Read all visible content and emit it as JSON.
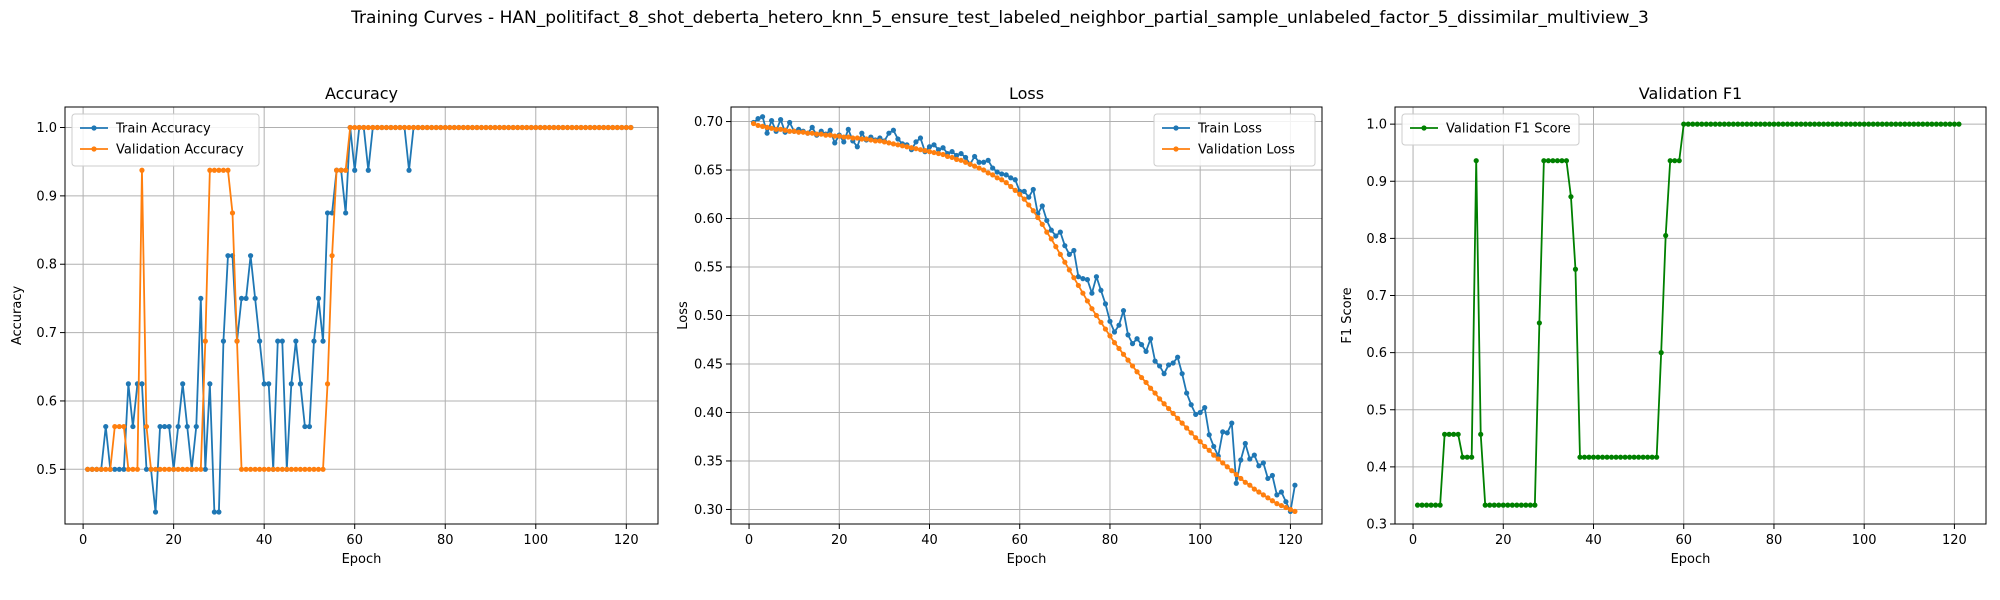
{
  "suptitle": "Training Curves - HAN_politifact_8_shot_deberta_hetero_knn_5_ensure_test_labeled_neighbor_partial_sample_unlabeled_factor_5_dissimilar_multiview_3",
  "colors": {
    "blue": "#1f77b4",
    "orange": "#ff7f0e",
    "green": "#008000",
    "grid": "#b0b0b0"
  },
  "chart_data": [
    {
      "type": "line",
      "title": "Accuracy",
      "xlabel": "Epoch",
      "ylabel": "Accuracy",
      "xlim": [
        -4,
        127
      ],
      "ylim": [
        0.42,
        1.03
      ],
      "xticks": [
        0,
        20,
        40,
        60,
        80,
        100,
        120
      ],
      "yticks": [
        0.5,
        0.6,
        0.7,
        0.8,
        0.9,
        1.0
      ],
      "ytick_labels": [
        "0.5",
        "0.6",
        "0.7",
        "0.8",
        "0.9",
        "1.0"
      ],
      "grid": true,
      "legend": "upper-left",
      "series": [
        {
          "name": "Train Accuracy",
          "color": "#1f77b4",
          "x_start": 1,
          "values": [
            0.5,
            0.5,
            0.5,
            0.5,
            0.5625,
            0.5,
            0.5,
            0.5,
            0.5,
            0.625,
            0.5625,
            0.625,
            0.625,
            0.5,
            0.5,
            0.4375,
            0.5625,
            0.5625,
            0.5625,
            0.5,
            0.5625,
            0.625,
            0.5625,
            0.5,
            0.5625,
            0.75,
            0.5,
            0.625,
            0.4375,
            0.4375,
            0.6875,
            0.8125,
            0.8125,
            0.6875,
            0.75,
            0.75,
            0.8125,
            0.75,
            0.6875,
            0.625,
            0.625,
            0.5,
            0.6875,
            0.6875,
            0.5,
            0.625,
            0.6875,
            0.625,
            0.5625,
            0.5625,
            0.6875,
            0.75,
            0.6875,
            0.875,
            0.875,
            0.9375,
            0.9375,
            0.875,
            1.0,
            0.9375,
            1.0,
            1.0,
            0.9375,
            1.0,
            1.0,
            1.0,
            1.0,
            1.0,
            1.0,
            1.0,
            1.0,
            0.9375,
            1.0,
            1.0,
            1.0,
            1.0,
            1.0,
            1.0,
            1.0,
            1.0,
            1.0,
            1.0,
            1.0,
            1.0,
            1.0,
            1.0,
            1.0,
            1.0,
            1.0,
            1.0,
            1.0,
            1.0,
            1.0,
            1.0,
            1.0,
            1.0,
            1.0,
            1.0,
            1.0,
            1.0,
            1.0,
            1.0,
            1.0,
            1.0,
            1.0,
            1.0,
            1.0,
            1.0,
            1.0,
            1.0,
            1.0,
            1.0,
            1.0,
            1.0,
            1.0,
            1.0,
            1.0,
            1.0,
            1.0,
            1.0,
            1.0
          ]
        },
        {
          "name": "Validation Accuracy",
          "color": "#ff7f0e",
          "x_start": 1,
          "values": [
            0.5,
            0.5,
            0.5,
            0.5,
            0.5,
            0.5,
            0.5625,
            0.5625,
            0.5625,
            0.5,
            0.5,
            0.5,
            0.9375,
            0.5625,
            0.5,
            0.5,
            0.5,
            0.5,
            0.5,
            0.5,
            0.5,
            0.5,
            0.5,
            0.5,
            0.5,
            0.5,
            0.6875,
            0.9375,
            0.9375,
            0.9375,
            0.9375,
            0.9375,
            0.875,
            0.6875,
            0.5,
            0.5,
            0.5,
            0.5,
            0.5,
            0.5,
            0.5,
            0.5,
            0.5,
            0.5,
            0.5,
            0.5,
            0.5,
            0.5,
            0.5,
            0.5,
            0.5,
            0.5,
            0.5,
            0.625,
            0.8125,
            0.9375,
            0.9375,
            0.9375,
            1.0,
            1.0,
            1.0,
            1.0,
            1.0,
            1.0,
            1.0,
            1.0,
            1.0,
            1.0,
            1.0,
            1.0,
            1.0,
            1.0,
            1.0,
            1.0,
            1.0,
            1.0,
            1.0,
            1.0,
            1.0,
            1.0,
            1.0,
            1.0,
            1.0,
            1.0,
            1.0,
            1.0,
            1.0,
            1.0,
            1.0,
            1.0,
            1.0,
            1.0,
            1.0,
            1.0,
            1.0,
            1.0,
            1.0,
            1.0,
            1.0,
            1.0,
            1.0,
            1.0,
            1.0,
            1.0,
            1.0,
            1.0,
            1.0,
            1.0,
            1.0,
            1.0,
            1.0,
            1.0,
            1.0,
            1.0,
            1.0,
            1.0,
            1.0,
            1.0,
            1.0,
            1.0,
            1.0
          ]
        }
      ]
    },
    {
      "type": "line",
      "title": "Loss",
      "xlabel": "Epoch",
      "ylabel": "Loss",
      "xlim": [
        -4,
        127
      ],
      "ylim": [
        0.285,
        0.715
      ],
      "xticks": [
        0,
        20,
        40,
        60,
        80,
        100,
        120
      ],
      "yticks": [
        0.3,
        0.35,
        0.4,
        0.45,
        0.5,
        0.55,
        0.6,
        0.65,
        0.7
      ],
      "ytick_labels": [
        "0.30",
        "0.35",
        "0.40",
        "0.45",
        "0.50",
        "0.55",
        "0.60",
        "0.65",
        "0.70"
      ],
      "grid": true,
      "legend": "upper-right",
      "series": [
        {
          "name": "Train Loss",
          "color": "#1f77b4",
          "x_start": 1,
          "values": [
            0.699,
            0.703,
            0.705,
            0.688,
            0.701,
            0.69,
            0.702,
            0.689,
            0.699,
            0.69,
            0.692,
            0.69,
            0.688,
            0.694,
            0.686,
            0.69,
            0.687,
            0.691,
            0.678,
            0.686,
            0.679,
            0.692,
            0.68,
            0.674,
            0.688,
            0.681,
            0.684,
            0.681,
            0.683,
            0.68,
            0.688,
            0.691,
            0.682,
            0.677,
            0.676,
            0.671,
            0.679,
            0.683,
            0.669,
            0.674,
            0.676,
            0.671,
            0.673,
            0.667,
            0.669,
            0.665,
            0.667,
            0.663,
            0.656,
            0.664,
            0.658,
            0.658,
            0.66,
            0.652,
            0.648,
            0.646,
            0.645,
            0.642,
            0.64,
            0.628,
            0.628,
            0.622,
            0.63,
            0.605,
            0.613,
            0.598,
            0.588,
            0.582,
            0.586,
            0.572,
            0.563,
            0.567,
            0.54,
            0.538,
            0.537,
            0.523,
            0.54,
            0.526,
            0.512,
            0.494,
            0.483,
            0.49,
            0.505,
            0.48,
            0.471,
            0.476,
            0.47,
            0.463,
            0.476,
            0.453,
            0.448,
            0.44,
            0.449,
            0.451,
            0.457,
            0.44,
            0.42,
            0.408,
            0.398,
            0.4,
            0.405,
            0.377,
            0.365,
            0.355,
            0.38,
            0.379,
            0.389,
            0.327,
            0.351,
            0.368,
            0.352,
            0.356,
            0.345,
            0.348,
            0.332,
            0.335,
            0.315,
            0.318,
            0.308,
            0.298,
            0.325
          ]
        },
        {
          "name": "Validation Loss",
          "color": "#ff7f0e",
          "x_start": 1,
          "values": [
            0.698,
            0.696,
            0.695,
            0.694,
            0.693,
            0.692,
            0.692,
            0.691,
            0.69,
            0.69,
            0.689,
            0.689,
            0.688,
            0.688,
            0.687,
            0.687,
            0.686,
            0.686,
            0.685,
            0.685,
            0.684,
            0.684,
            0.683,
            0.683,
            0.682,
            0.682,
            0.681,
            0.68,
            0.68,
            0.679,
            0.678,
            0.677,
            0.676,
            0.675,
            0.674,
            0.673,
            0.672,
            0.671,
            0.67,
            0.669,
            0.668,
            0.667,
            0.666,
            0.664,
            0.663,
            0.661,
            0.66,
            0.658,
            0.656,
            0.654,
            0.652,
            0.65,
            0.647,
            0.645,
            0.642,
            0.64,
            0.637,
            0.633,
            0.629,
            0.625,
            0.62,
            0.614,
            0.608,
            0.601,
            0.594,
            0.586,
            0.579,
            0.571,
            0.563,
            0.555,
            0.547,
            0.539,
            0.531,
            0.523,
            0.515,
            0.507,
            0.5,
            0.493,
            0.486,
            0.479,
            0.472,
            0.466,
            0.46,
            0.454,
            0.448,
            0.442,
            0.436,
            0.431,
            0.425,
            0.42,
            0.414,
            0.409,
            0.404,
            0.399,
            0.394,
            0.389,
            0.384,
            0.379,
            0.374,
            0.37,
            0.365,
            0.361,
            0.356,
            0.352,
            0.348,
            0.344,
            0.34,
            0.336,
            0.332,
            0.328,
            0.325,
            0.321,
            0.318,
            0.315,
            0.312,
            0.309,
            0.306,
            0.304,
            0.302,
            0.3,
            0.298
          ]
        }
      ]
    },
    {
      "type": "line",
      "title": "Validation F1",
      "xlabel": "Epoch",
      "ylabel": "F1 Score",
      "xlim": [
        -4,
        127
      ],
      "ylim": [
        0.3,
        1.03
      ],
      "xticks": [
        0,
        20,
        40,
        60,
        80,
        100,
        120
      ],
      "yticks": [
        0.3,
        0.4,
        0.5,
        0.6,
        0.7,
        0.8,
        0.9,
        1.0
      ],
      "ytick_labels": [
        "0.3",
        "0.4",
        "0.5",
        "0.6",
        "0.7",
        "0.8",
        "0.9",
        "1.0"
      ],
      "grid": true,
      "legend": "upper-left",
      "series": [
        {
          "name": "Validation F1 Score",
          "color": "#008000",
          "x_start": 1,
          "values": [
            0.333,
            0.333,
            0.333,
            0.333,
            0.333,
            0.333,
            0.457,
            0.457,
            0.457,
            0.457,
            0.417,
            0.417,
            0.417,
            0.936,
            0.457,
            0.333,
            0.333,
            0.333,
            0.333,
            0.333,
            0.333,
            0.333,
            0.333,
            0.333,
            0.333,
            0.333,
            0.333,
            0.652,
            0.936,
            0.936,
            0.936,
            0.936,
            0.936,
            0.936,
            0.873,
            0.746,
            0.417,
            0.417,
            0.417,
            0.417,
            0.417,
            0.417,
            0.417,
            0.417,
            0.417,
            0.417,
            0.417,
            0.417,
            0.417,
            0.417,
            0.417,
            0.417,
            0.417,
            0.417,
            0.6,
            0.805,
            0.936,
            0.936,
            0.936,
            1.0,
            1.0,
            1.0,
            1.0,
            1.0,
            1.0,
            1.0,
            1.0,
            1.0,
            1.0,
            1.0,
            1.0,
            1.0,
            1.0,
            1.0,
            1.0,
            1.0,
            1.0,
            1.0,
            1.0,
            1.0,
            1.0,
            1.0,
            1.0,
            1.0,
            1.0,
            1.0,
            1.0,
            1.0,
            1.0,
            1.0,
            1.0,
            1.0,
            1.0,
            1.0,
            1.0,
            1.0,
            1.0,
            1.0,
            1.0,
            1.0,
            1.0,
            1.0,
            1.0,
            1.0,
            1.0,
            1.0,
            1.0,
            1.0,
            1.0,
            1.0,
            1.0,
            1.0,
            1.0,
            1.0,
            1.0,
            1.0,
            1.0,
            1.0,
            1.0,
            1.0,
            1.0
          ]
        }
      ]
    }
  ]
}
